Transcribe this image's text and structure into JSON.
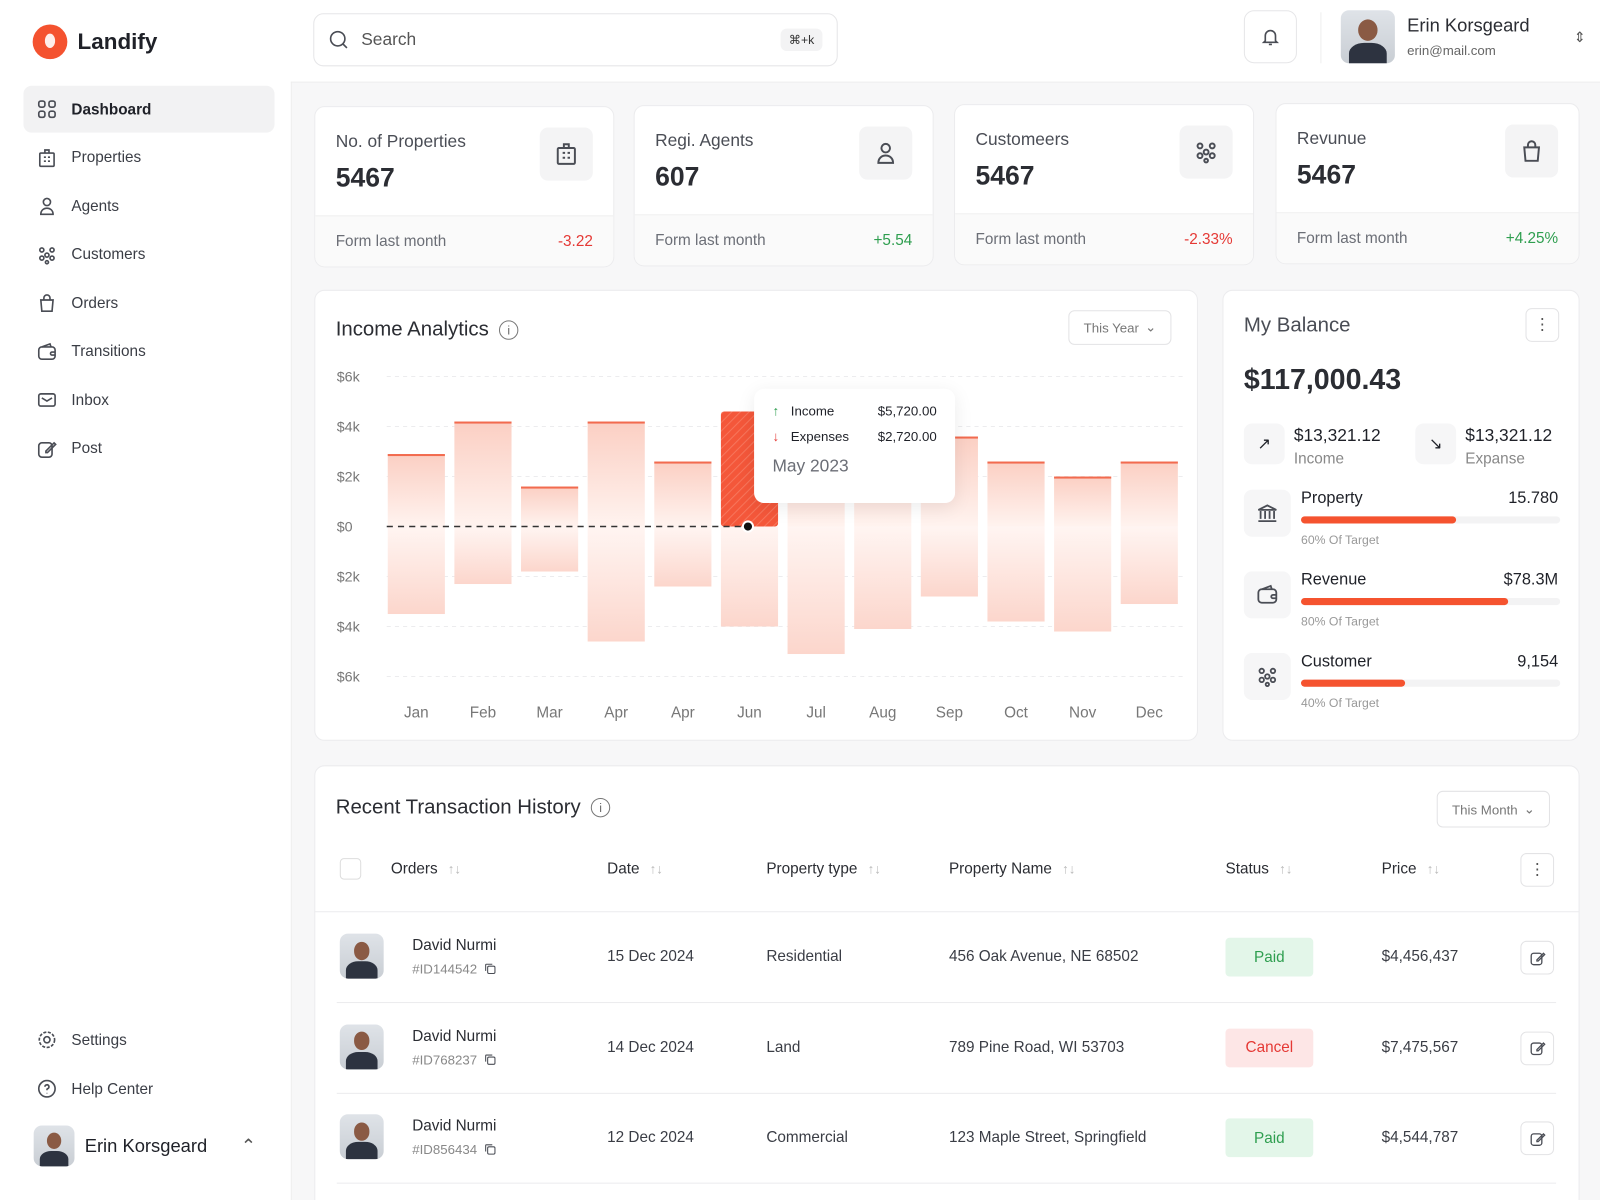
{
  "app": {
    "name": "Landify"
  },
  "sidebar": {
    "items": [
      {
        "label": "Dashboard",
        "icon": "grid-icon",
        "active": true
      },
      {
        "label": "Properties",
        "icon": "building-icon"
      },
      {
        "label": "Agents",
        "icon": "user-icon"
      },
      {
        "label": "Customers",
        "icon": "users-icon"
      },
      {
        "label": "Orders",
        "icon": "bag-icon"
      },
      {
        "label": "Transitions",
        "icon": "wallet-icon"
      },
      {
        "label": "Inbox",
        "icon": "mail-icon"
      },
      {
        "label": "Post",
        "icon": "edit-icon"
      }
    ],
    "settings": "Settings",
    "help": "Help Center",
    "user": "Erin Korsgeard"
  },
  "header": {
    "search_placeholder": "Search",
    "shortcut": "⌘+k",
    "user_name": "Erin Korsgeard",
    "user_email": "erin@mail.com"
  },
  "stats": [
    {
      "label": "No. of Properties",
      "value": "5467",
      "foot": "Form last month",
      "change": "-3.22",
      "trend": "neg"
    },
    {
      "label": "Regi. Agents",
      "value": "607",
      "foot": "Form last month",
      "change": "+5.54",
      "trend": "pos"
    },
    {
      "label": "Customeers",
      "value": "5467",
      "foot": "Form last month",
      "change": "-2.33%",
      "trend": "neg"
    },
    {
      "label": "Revunue",
      "value": "5467",
      "foot": "Form last month",
      "change": "+4.25%",
      "trend": "pos"
    }
  ],
  "income": {
    "title": "Income Analytics",
    "filter": "This Year",
    "tooltip": {
      "income_label": "Income",
      "income_value": "$5,720.00",
      "expense_label": "Expenses",
      "expense_value": "$2,720.00",
      "date": "May 2023"
    }
  },
  "chart_data": {
    "type": "bar",
    "categories": [
      "Jan",
      "Feb",
      "Mar",
      "Apr",
      "Apr",
      "Jun",
      "Jul",
      "Aug",
      "Sep",
      "Oct",
      "Nov",
      "Dec"
    ],
    "y_ticks": [
      "$6k",
      "$4k",
      "$2k",
      "$0",
      "$2k",
      "$4k",
      "$6k"
    ],
    "ylim": [
      -6000,
      6000
    ],
    "grid": true,
    "highlight": "Jun",
    "series": [
      {
        "name": "Income",
        "values": [
          2900,
          4200,
          1600,
          4200,
          2600,
          4600,
          3000,
          3200,
          3600,
          2600,
          2000,
          2600
        ]
      },
      {
        "name": "Expenses",
        "values": [
          -3500,
          -2300,
          -1800,
          -4600,
          -2400,
          -4000,
          -5100,
          -4100,
          -2800,
          -3800,
          -4200,
          -3100
        ]
      }
    ]
  },
  "balance": {
    "title": "My Balance",
    "amount": "$117,000.43",
    "income_value": "$13,321.12",
    "income_label": "Income",
    "expense_value": "$13,321.12",
    "expense_label": "Expanse",
    "targets": [
      {
        "label": "Property",
        "value": "15.780",
        "percent": 60,
        "note": "60% Of Target",
        "icon": "bank-icon"
      },
      {
        "label": "Revenue",
        "value": "$78.3M",
        "percent": 80,
        "note": "80% Of Target",
        "icon": "wallet-icon"
      },
      {
        "label": "Customer",
        "value": "9,154",
        "percent": 40,
        "note": "40% Of Target",
        "icon": "users-icon"
      }
    ]
  },
  "transactions": {
    "title": "Recent Transaction History",
    "filter": "This Month",
    "columns": [
      "Orders",
      "Date",
      "Property type",
      "Property Name",
      "Status",
      "Price"
    ],
    "rows": [
      {
        "name": "David Nurmi",
        "id": "#ID144542",
        "date": "15 Dec 2024",
        "type": "Residential",
        "property": "456 Oak Avenue, NE 68502",
        "status": "Paid",
        "price": "$4,456,437"
      },
      {
        "name": "David Nurmi",
        "id": "#ID768237",
        "date": "14 Dec 2024",
        "type": "Land",
        "property": "789 Pine Road, WI 53703",
        "status": "Cancel",
        "price": "$7,475,567"
      },
      {
        "name": "David Nurmi",
        "id": "#ID856434",
        "date": "12 Dec 2024",
        "type": "Commercial",
        "property": "123 Maple Street, Springfield",
        "status": "Paid",
        "price": "$4,544,787"
      }
    ]
  },
  "colors": {
    "accent": "#f5532f",
    "paid_bg": "#e3f6e9",
    "paid_text": "#2e9e4f",
    "cancel_bg": "#fde6e6",
    "cancel_text": "#e53935"
  }
}
